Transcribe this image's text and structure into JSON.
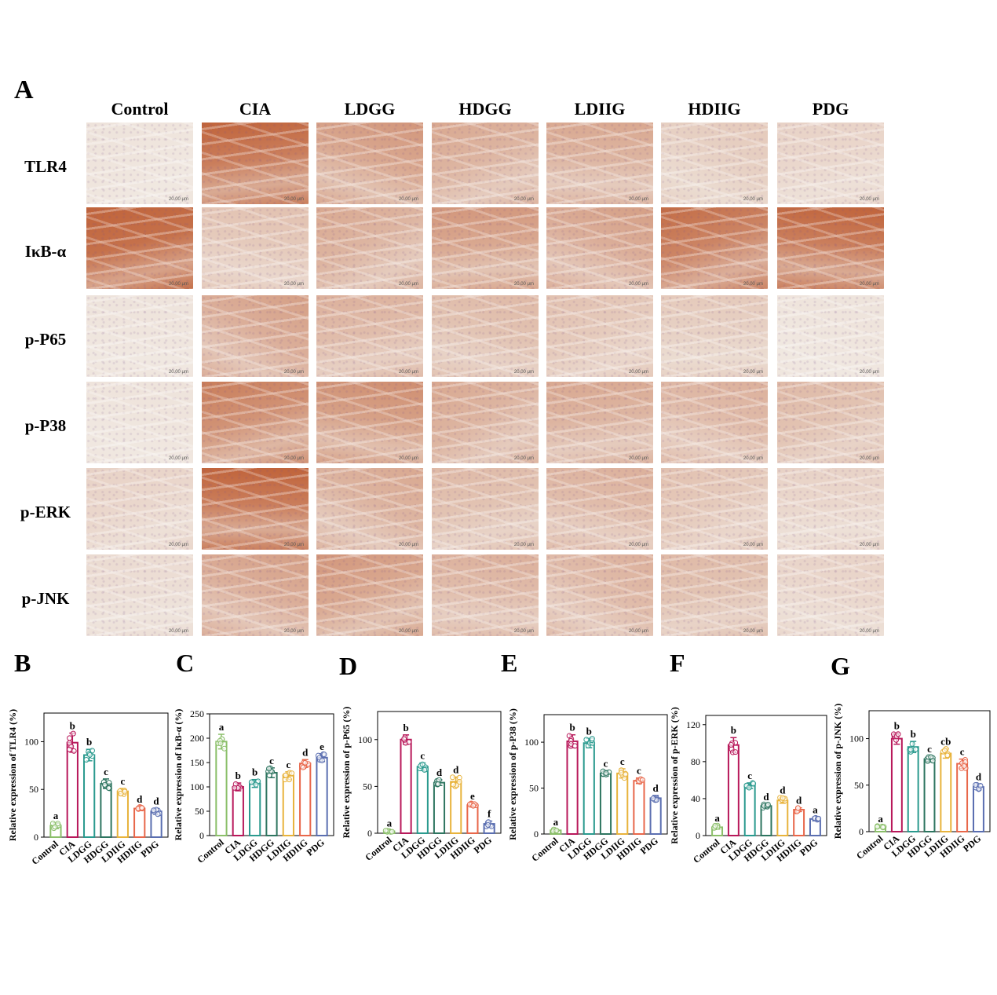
{
  "panel_a": {
    "letter": "A",
    "groups": [
      "Control",
      "CIA",
      "LDGG",
      "HDGG",
      "LDIIG",
      "HDIIG",
      "PDG"
    ],
    "markers": [
      "TLR4",
      "IκB-α",
      "p-P65",
      "p-P38",
      "p-ERK",
      "p-JNK"
    ],
    "scale_bar_text": "20.00 μm",
    "stain_intensity": [
      [
        0.05,
        0.8,
        0.5,
        0.4,
        0.4,
        0.2,
        0.15
      ],
      [
        0.9,
        0.25,
        0.4,
        0.5,
        0.45,
        0.75,
        0.8
      ],
      [
        0.05,
        0.45,
        0.35,
        0.3,
        0.25,
        0.2,
        0.05
      ],
      [
        0.05,
        0.65,
        0.55,
        0.4,
        0.4,
        0.35,
        0.3
      ],
      [
        0.15,
        0.8,
        0.4,
        0.3,
        0.35,
        0.25,
        0.15
      ],
      [
        0.1,
        0.45,
        0.5,
        0.35,
        0.35,
        0.3,
        0.15
      ]
    ]
  },
  "colors": {
    "Control": "#8bbf6a",
    "CIA": "#b8185a",
    "LDGG": "#2a9a8e",
    "HDGG": "#2e7560",
    "LDIIG": "#e8b33c",
    "HDIIG": "#e8674a",
    "PDG": "#5a6eb0",
    "stain_brown": "#c0633a",
    "stain_light": "#f1ece6"
  },
  "chart_data": [
    {
      "letter": "B",
      "type": "bar",
      "ylabel": "Relative expression of TLR4 (%)",
      "categories": [
        "Control",
        "CIA",
        "LDGG",
        "HDGG",
        "LDIIG",
        "HDIIG",
        "PDG"
      ],
      "values": [
        12,
        99,
        86,
        56,
        48,
        30,
        27
      ],
      "errors": [
        3,
        10,
        6,
        5,
        3,
        2,
        3
      ],
      "letters": [
        "a",
        "b",
        "b",
        "c",
        "c",
        "d",
        "d"
      ],
      "yticks": [
        0,
        50,
        100
      ],
      "ylim": [
        0,
        130
      ]
    },
    {
      "letter": "C",
      "type": "bar",
      "ylabel": "Relative expression of IκB-α (%)",
      "categories": [
        "Control",
        "CIA",
        "LDGG",
        "HDGG",
        "LDIIG",
        "HDIIG",
        "PDG"
      ],
      "values": [
        193,
        100,
        107,
        129,
        123,
        148,
        160
      ],
      "errors": [
        15,
        8,
        8,
        10,
        8,
        8,
        8
      ],
      "letters": [
        "a",
        "b",
        "b",
        "c",
        "c",
        "d",
        "e"
      ],
      "yticks": [
        0,
        50,
        100,
        150,
        200,
        250
      ],
      "ylim": [
        0,
        250
      ]
    },
    {
      "letter": "D",
      "type": "bar",
      "ylabel": "Relative expression of p-P65 (%)",
      "categories": [
        "Control",
        "CIA",
        "LDGG",
        "HDGG",
        "LDIIG",
        "HDIIG",
        "PDG"
      ],
      "values": [
        2,
        100,
        71,
        54,
        55,
        30,
        10
      ],
      "errors": [
        1,
        5,
        4,
        3,
        5,
        2,
        3
      ],
      "letters": [
        "a",
        "b",
        "c",
        "d",
        "d",
        "e",
        "f"
      ],
      "yticks": [
        0,
        50,
        100
      ],
      "ylim": [
        0,
        130
      ]
    },
    {
      "letter": "E",
      "type": "bar",
      "ylabel": "Relative expression of p-P38 (%)",
      "categories": [
        "Control",
        "CIA",
        "LDGG",
        "HDGG",
        "LDIIG",
        "HDIIG",
        "PDG"
      ],
      "values": [
        4,
        101,
        99,
        66,
        66,
        58,
        39
      ],
      "errors": [
        1,
        7,
        5,
        3,
        5,
        3,
        3
      ],
      "letters": [
        "a",
        "b",
        "b",
        "c",
        "c",
        "c",
        "d"
      ],
      "yticks": [
        0,
        50,
        100
      ],
      "ylim": [
        0,
        130
      ]
    },
    {
      "letter": "F",
      "type": "bar",
      "ylabel": "Relative expression of p-ERK (%)",
      "categories": [
        "Control",
        "CIA",
        "LDGG",
        "HDGG",
        "LDIIG",
        "HDIIG",
        "PDG"
      ],
      "values": [
        9,
        98,
        54,
        32,
        38,
        28,
        18
      ],
      "errors": [
        2,
        8,
        3,
        2,
        3,
        2,
        2
      ],
      "letters": [
        "a",
        "b",
        "c",
        "d",
        "d",
        "d",
        "a"
      ],
      "yticks": [
        0,
        40,
        80,
        120
      ],
      "ylim": [
        0,
        130
      ]
    },
    {
      "letter": "G",
      "type": "bar",
      "ylabel": "Relative expression of p-JNK (%)",
      "categories": [
        "Control",
        "CIA",
        "LDGG",
        "HDGG",
        "LDIIG",
        "HDIIG",
        "PDG"
      ],
      "values": [
        5,
        100,
        91,
        78,
        84,
        73,
        48
      ],
      "errors": [
        1,
        6,
        6,
        3,
        5,
        5,
        3
      ],
      "letters": [
        "a",
        "b",
        "b",
        "c",
        "cb",
        "c",
        "d"
      ],
      "yticks": [
        0,
        50,
        100
      ],
      "ylim": [
        0,
        130
      ]
    }
  ]
}
